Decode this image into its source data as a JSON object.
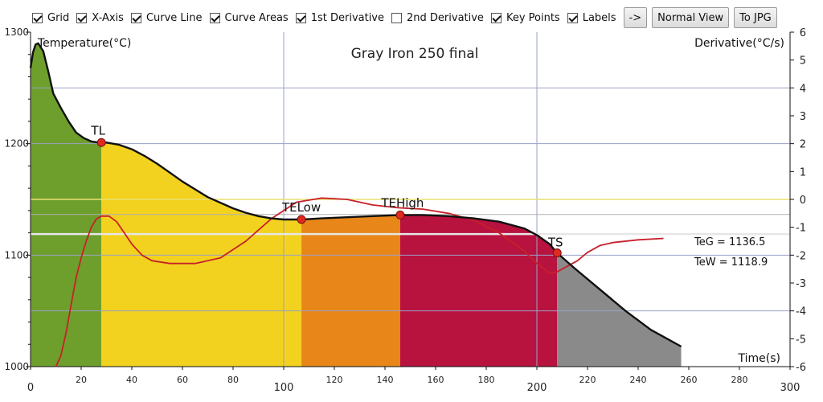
{
  "toolbar": {
    "checkboxes": [
      {
        "label": "Grid",
        "checked": true
      },
      {
        "label": "X-Axis",
        "checked": true
      },
      {
        "label": "Curve Line",
        "checked": true
      },
      {
        "label": "Curve Areas",
        "checked": true
      },
      {
        "label": "1st Derivative",
        "checked": true
      },
      {
        "label": "2nd Derivative",
        "checked": false
      },
      {
        "label": "Key Points",
        "checked": true
      },
      {
        "label": "Labels",
        "checked": true
      }
    ],
    "arrow_label": "->",
    "normal_view_label": "Normal View",
    "to_jpg_label": "To JPG"
  },
  "colors": {
    "zone1": "#6e9e2c",
    "zone2": "#f2d21e",
    "zone3": "#e8861a",
    "zone4": "#b8123f",
    "zone5": "#8a8a8a",
    "curve": "#111111",
    "derivative": "#c8202a",
    "key_point": "#e02a20",
    "grid": "#9aa0c8",
    "teg_line": "#e8e070",
    "tew_line": "#e6e6e6"
  },
  "chart_data": {
    "type": "line",
    "title": "Gray Iron 250 final",
    "ylabel": "Temperature(°C)",
    "y2label": "Derivative(°C/s)",
    "xlabel": "Time(s)",
    "xlim": [
      0,
      300
    ],
    "ylim": [
      1000,
      1300
    ],
    "y2lim": [
      -6,
      6
    ],
    "grid": true,
    "x_ticks": [
      0,
      20,
      40,
      60,
      80,
      100,
      120,
      140,
      160,
      180,
      200,
      220,
      240,
      260,
      280,
      300
    ],
    "y_ticks": [
      1000,
      1100,
      1200,
      1300
    ],
    "y2_ticks": [
      -6,
      -5,
      -4,
      -3,
      -2,
      -1,
      0,
      1,
      2,
      3,
      4,
      5,
      6
    ],
    "series": [
      {
        "x": [
          0,
          1,
          2,
          3,
          5,
          7,
          9,
          12,
          15,
          18,
          21,
          24,
          27,
          30,
          35,
          40,
          45,
          50,
          55,
          60,
          65,
          70,
          75,
          80,
          85,
          90,
          95,
          100,
          105,
          107,
          115,
          125,
          135,
          146,
          155,
          165,
          175,
          185,
          195,
          200,
          205,
          208,
          215,
          225,
          235,
          245,
          257
        ],
        "values": [
          1268,
          1282,
          1289,
          1290,
          1283,
          1265,
          1245,
          1232,
          1220,
          1210,
          1205,
          1202,
          1201,
          1201,
          1199,
          1195,
          1189,
          1182,
          1174,
          1166,
          1159,
          1152,
          1147,
          1142,
          1138,
          1135,
          1133,
          1132,
          1132,
          1132,
          1133,
          1134,
          1135,
          1136,
          1136,
          1135,
          1133,
          1130,
          1124,
          1118,
          1110,
          1102,
          1088,
          1069,
          1050,
          1033,
          1018
        ]
      },
      {
        "x": [
          10,
          12,
          14,
          16,
          18,
          20,
          22,
          24,
          26,
          28,
          31,
          34,
          37,
          40,
          44,
          48,
          55,
          65,
          75,
          85,
          95,
          105,
          115,
          125,
          135,
          145,
          155,
          165,
          175,
          185,
          195,
          200,
          205,
          208,
          212,
          216,
          220,
          225,
          230,
          240,
          250
        ],
        "values": [
          -6,
          -5.6,
          -4.8,
          -3.8,
          -2.8,
          -2.1,
          -1.5,
          -1.0,
          -0.7,
          -0.6,
          -0.6,
          -0.8,
          -1.2,
          -1.6,
          -2.0,
          -2.2,
          -2.3,
          -2.3,
          -2.1,
          -1.5,
          -0.7,
          -0.1,
          0.05,
          0.0,
          -0.2,
          -0.3,
          -0.35,
          -0.5,
          -0.75,
          -1.2,
          -1.85,
          -2.3,
          -2.65,
          -2.6,
          -2.4,
          -2.2,
          -1.9,
          -1.65,
          -1.55,
          -1.45,
          -1.4
        ]
      }
    ],
    "zones": [
      {
        "from": 0,
        "to": 28
      },
      {
        "from": 28,
        "to": 107
      },
      {
        "from": 107,
        "to": 146
      },
      {
        "from": 146,
        "to": 208
      },
      {
        "from": 208,
        "to": 257
      }
    ],
    "key_points": [
      {
        "label": "TL",
        "x": 28,
        "y": 1201
      },
      {
        "label": "TELow",
        "x": 107,
        "y": 1132
      },
      {
        "label": "TEHigh",
        "x": 146,
        "y": 1136
      },
      {
        "label": "TS",
        "x": 208,
        "y": 1102
      }
    ],
    "reference_lines": [
      {
        "label": "TeG = 1136.5",
        "y": 1136.5
      },
      {
        "label": "TeW = 1118.9",
        "y": 1118.9
      }
    ],
    "derivative_zero_line": 0
  }
}
